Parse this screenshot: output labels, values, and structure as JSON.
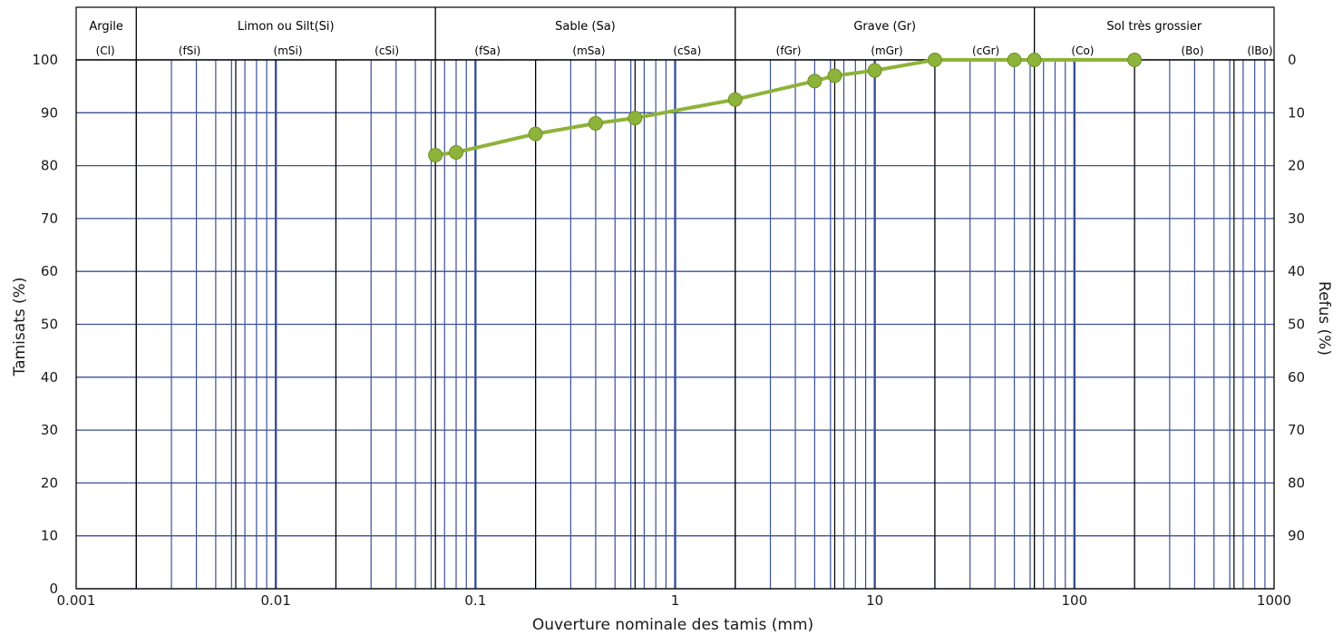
{
  "chart_data": {
    "type": "line",
    "x_scale": "log",
    "xlim": [
      0.001,
      1000
    ],
    "ylim": [
      0,
      100
    ],
    "y2lim": [
      100,
      0
    ],
    "xlabel": "Ouverture nominale des tamis (mm)",
    "ylabel": "Tamisats (%)",
    "y2label": "Refus (%)",
    "x_ticks": [
      0.001,
      0.01,
      0.1,
      1,
      10,
      100,
      1000
    ],
    "x_tick_labels": [
      "0.001",
      "0.01",
      "0.1",
      "1",
      "10",
      "100",
      "1000"
    ],
    "y_ticks": [
      0,
      10,
      20,
      30,
      40,
      50,
      60,
      70,
      80,
      90,
      100
    ],
    "y_tick_labels": [
      "0",
      "10",
      "20",
      "30",
      "40",
      "50",
      "60",
      "70",
      "80",
      "90",
      "100"
    ],
    "y2_ticks": [
      100,
      90,
      80,
      70,
      60,
      50,
      40,
      30,
      20,
      10,
      0
    ],
    "y2_tick_labels": [
      "0",
      "10",
      "20",
      "30",
      "40",
      "50",
      "60",
      "70",
      "80",
      "90",
      ""
    ],
    "grid": true,
    "soil_classes": [
      {
        "label": "Argile",
        "from": 0.001,
        "to": 0.002,
        "subclasses": [
          {
            "label": "(Cl)",
            "at": 0.0014
          }
        ]
      },
      {
        "label": "Limon ou Silt(Si)",
        "from": 0.002,
        "to": 0.063,
        "subclasses": [
          {
            "label": "(fSi)",
            "at": 0.0037
          },
          {
            "label": "(mSi)",
            "at": 0.0115
          },
          {
            "label": "(cSi)",
            "at": 0.036
          }
        ]
      },
      {
        "label": "Sable (Sa)",
        "from": 0.063,
        "to": 2,
        "subclasses": [
          {
            "label": "(fSa)",
            "at": 0.115
          },
          {
            "label": "(mSa)",
            "at": 0.37
          },
          {
            "label": "(cSa)",
            "at": 1.15
          }
        ]
      },
      {
        "label": "Grave (Gr)",
        "from": 2,
        "to": 63,
        "subclasses": [
          {
            "label": "(fGr)",
            "at": 3.7
          },
          {
            "label": "(mGr)",
            "at": 11.5
          },
          {
            "label": "(cGr)",
            "at": 36
          }
        ]
      },
      {
        "label": "Sol très grossier",
        "from": 63,
        "to": 1000,
        "subclasses": [
          {
            "label": "(Co)",
            "at": 110
          },
          {
            "label": "(Bo)",
            "at": 390
          },
          {
            "label": "(lBo)",
            "at": 850
          }
        ]
      }
    ],
    "series": [
      {
        "color": "#8db33a",
        "x": [
          0.063,
          0.08,
          0.2,
          0.4,
          0.63,
          2,
          5,
          6.3,
          10,
          20,
          50,
          63,
          200
        ],
        "y": [
          82,
          82.5,
          86,
          88,
          89,
          92.5,
          96,
          97,
          98,
          100,
          100,
          100,
          100
        ]
      }
    ],
    "colors": {
      "grid_fine": "#3a4f97",
      "grid_major": "#000000",
      "series": "#8db33a"
    }
  }
}
